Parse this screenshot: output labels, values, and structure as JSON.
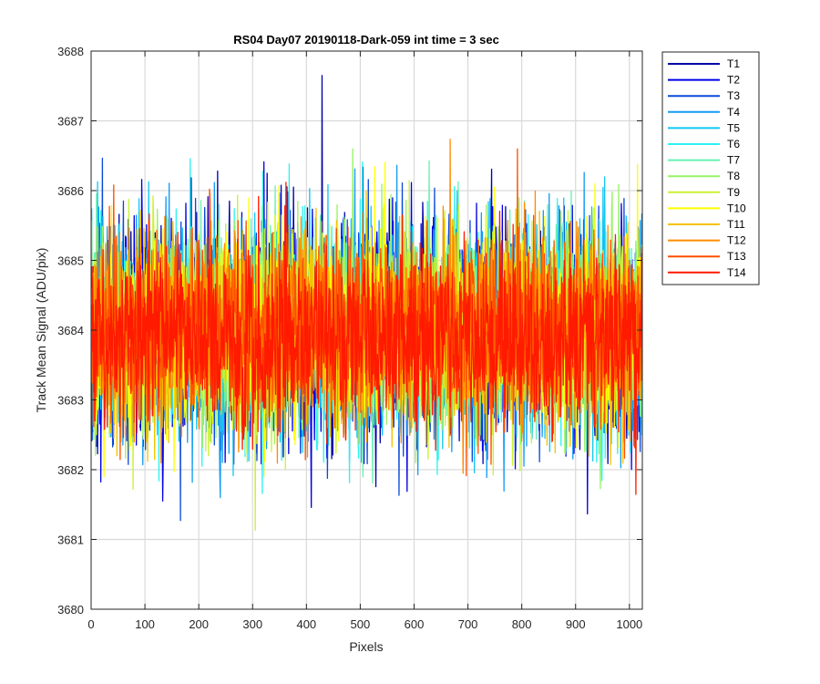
{
  "chart_data": {
    "type": "line",
    "title": "RS04 Day07 20190118-Dark-059 int time = 3 sec",
    "xlabel": "Pixels",
    "ylabel": "Track Mean Signal (ADU/pix)",
    "xlim": [
      0,
      1024
    ],
    "ylim": [
      3680,
      3688
    ],
    "x_ticks": [
      0,
      100,
      200,
      300,
      400,
      500,
      600,
      700,
      800,
      900,
      1000
    ],
    "y_ticks": [
      3680,
      3681,
      3682,
      3683,
      3684,
      3685,
      3686,
      3687,
      3688
    ],
    "x_tick_labels": [
      "0",
      "100",
      "200",
      "300",
      "400",
      "500",
      "600",
      "700",
      "800",
      "900",
      "1000"
    ],
    "y_tick_labels": [
      "3680",
      "3681",
      "3682",
      "3683",
      "3684",
      "3685",
      "3686",
      "3687",
      "3688"
    ],
    "grid": true,
    "legend_position": "outside-top-right",
    "x_start": 1,
    "x_end": 1024,
    "noise_seed": 59,
    "series": [
      {
        "name": "T1",
        "color": "#0000aa",
        "mean": 3684.0,
        "spread": 1.25
      },
      {
        "name": "T2",
        "color": "#0000e6",
        "mean": 3684.0,
        "spread": 1.25
      },
      {
        "name": "T3",
        "color": "#0a4ad9",
        "mean": 3684.0,
        "spread": 1.2
      },
      {
        "name": "T4",
        "color": "#139bf2",
        "mean": 3684.0,
        "spread": 1.2
      },
      {
        "name": "T5",
        "color": "#13c6f2",
        "mean": 3684.0,
        "spread": 1.2
      },
      {
        "name": "T6",
        "color": "#2ef2f2",
        "mean": 3684.0,
        "spread": 1.2
      },
      {
        "name": "T7",
        "color": "#66f2b0",
        "mean": 3684.0,
        "spread": 1.15
      },
      {
        "name": "T8",
        "color": "#99f266",
        "mean": 3684.0,
        "spread": 1.15
      },
      {
        "name": "T9",
        "color": "#ccf233",
        "mean": 3684.0,
        "spread": 1.15
      },
      {
        "name": "T10",
        "color": "#ffff00",
        "mean": 3684.0,
        "spread": 1.15
      },
      {
        "name": "T11",
        "color": "#f2c400",
        "mean": 3684.0,
        "spread": 1.1
      },
      {
        "name": "T12",
        "color": "#ff8c00",
        "mean": 3684.0,
        "spread": 1.1
      },
      {
        "name": "T13",
        "color": "#ff5000",
        "mean": 3684.0,
        "spread": 1.1
      },
      {
        "name": "T14",
        "color": "#ff1a00",
        "mean": 3683.9,
        "spread": 1.05
      }
    ]
  }
}
